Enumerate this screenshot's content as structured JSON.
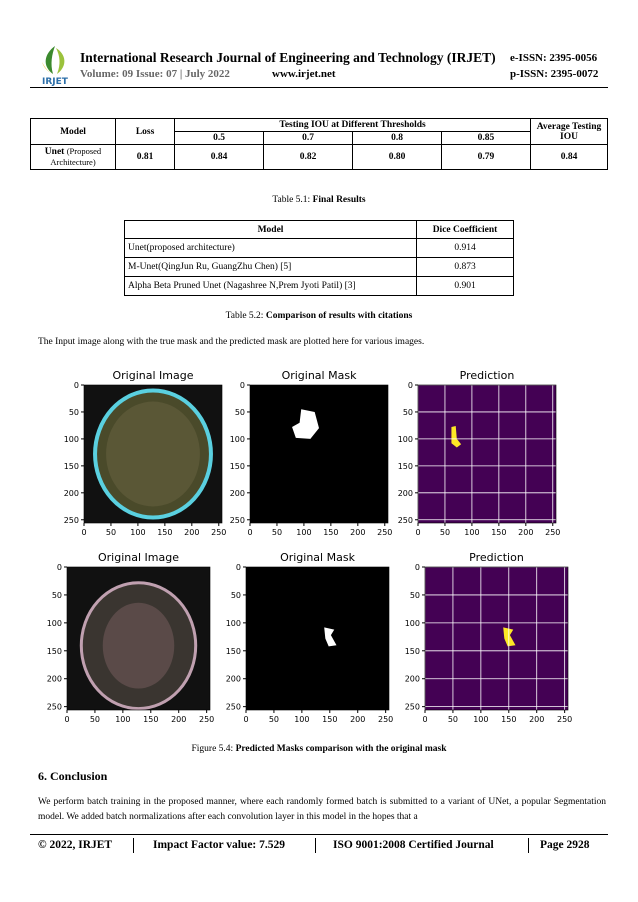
{
  "header": {
    "logo": "IRJET",
    "journal": "International Research Journal of Engineering and Technology (IRJET)",
    "eissn": "e-ISSN: 2395-0056",
    "volume": "Volume: 09 Issue: 07 | July 2022",
    "website": "www.irjet.net",
    "pissn": "p-ISSN: 2395-0072"
  },
  "table1": {
    "header": {
      "model": "Model",
      "loss": "Loss",
      "group": "Testing IOU at Different Thresholds",
      "thresholds": [
        "0.5",
        "0.7",
        "0.8",
        "0.85"
      ],
      "average": "Average Testing IOU"
    },
    "row": {
      "model_bold": "Unet",
      "model_rest": "(Proposed Architecture)",
      "cells": [
        "0.81",
        "0.84",
        "0.82",
        "0.80",
        "0.79",
        "0.84"
      ]
    },
    "caption_prefix": "Table 5.1: ",
    "caption_title": "Final Results"
  },
  "table2": {
    "header": [
      "Model",
      "Dice Coefficient"
    ],
    "rows": [
      [
        "Unet(proposed architecture)",
        "0.914"
      ],
      [
        "M-Unet(QingJun Ru, GuangZhu Chen) [5]",
        "0.873"
      ],
      [
        "Alpha Beta Pruned Unet (Nagashree N,Prem Jyoti Patil) [3]",
        "0.901"
      ]
    ],
    "caption_prefix": "Table 5.2: ",
    "caption_title": "Comparison of results with citations"
  },
  "intro": "The Input image along with the true mask and the predicted mask are plotted here for various images.",
  "figure": {
    "panels": [
      "Original Image",
      "Original Mask",
      "Prediction",
      "Original Image",
      "Original Mask",
      "Prediction"
    ],
    "xticks": [
      0,
      50,
      100,
      150,
      200,
      250
    ],
    "yticks": [
      0,
      50,
      100,
      150,
      200,
      250
    ],
    "xlim": [
      0,
      256
    ],
    "ylim": [
      0,
      256
    ],
    "caption_prefix": "Figure 5.4: ",
    "caption_title": "Predicted Masks comparison with the original mask"
  },
  "section": {
    "heading": "6.  Conclusion",
    "text": "We perform batch training in the proposed manner, where each randomly formed batch is submitted to a variant of UNet, a popular Segmentation model. We added batch normalizations after each convolution layer in this model in the hopes that a"
  },
  "footer": {
    "copyright": "© 2022, IRJET",
    "impact": "Impact Factor value: 7.529",
    "iso": "ISO 9001:2008 Certified Journal",
    "page": "Page 2928"
  }
}
